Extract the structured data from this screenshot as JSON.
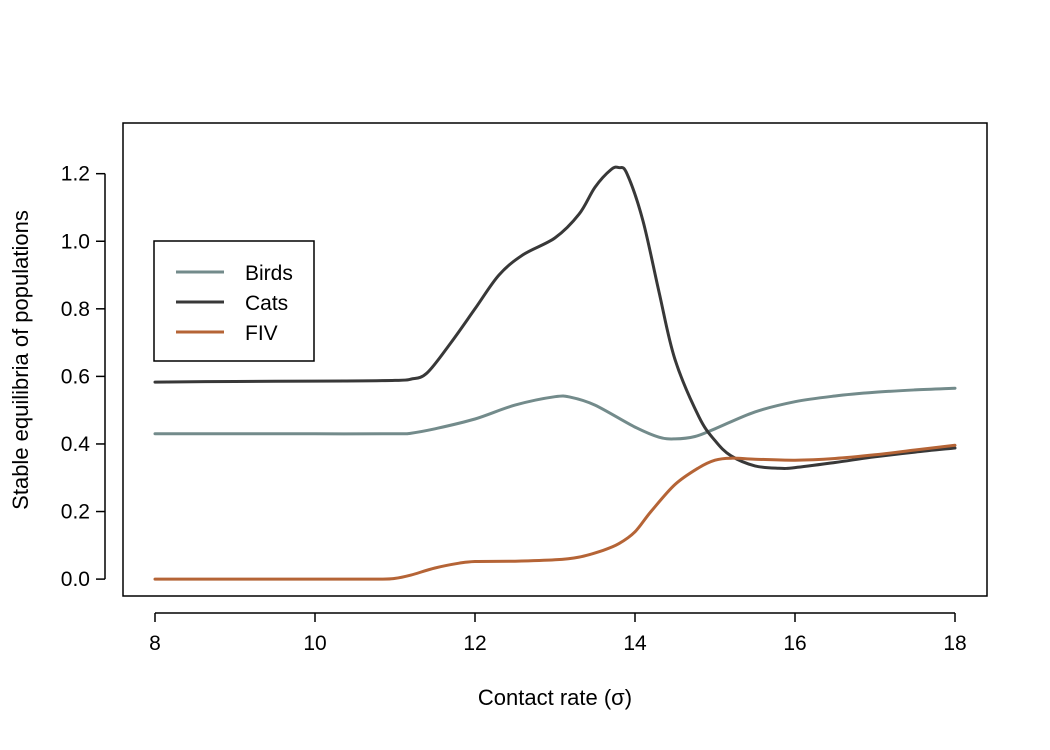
{
  "chart_data": {
    "type": "line",
    "xlabel": "Contact rate (σ)",
    "ylabel": "Stable equilibria of populations",
    "xlim": [
      7.6,
      18.4
    ],
    "ylim": [
      -0.05,
      1.35
    ],
    "xticks": [
      8,
      10,
      12,
      14,
      16,
      18
    ],
    "yticks": [
      0.0,
      0.2,
      0.4,
      0.6,
      0.8,
      1.0,
      1.2
    ],
    "ytick_labels": [
      "0.0",
      "0.2",
      "0.4",
      "0.6",
      "0.8",
      "1.0",
      "1.2"
    ],
    "grid": false,
    "legend_position": "top-left",
    "series": [
      {
        "name": "Birds",
        "color": "#738b8b",
        "x": [
          8,
          9,
          10,
          11,
          11.2,
          11.5,
          12,
          12.5,
          13,
          13.2,
          13.5,
          14,
          14.3,
          14.5,
          14.75,
          15,
          15.5,
          16,
          16.5,
          17,
          17.5,
          18
        ],
        "y": [
          0.43,
          0.43,
          0.43,
          0.43,
          0.432,
          0.445,
          0.474,
          0.515,
          0.54,
          0.538,
          0.515,
          0.45,
          0.42,
          0.415,
          0.422,
          0.445,
          0.495,
          0.525,
          0.542,
          0.553,
          0.56,
          0.565
        ]
      },
      {
        "name": "Cats",
        "color": "#383838",
        "x": [
          8,
          9,
          10,
          11,
          11.2,
          11.4,
          11.7,
          12,
          12.3,
          12.6,
          13,
          13.3,
          13.5,
          13.7,
          13.8,
          13.9,
          14.1,
          14.3,
          14.5,
          14.8,
          15,
          15.2,
          15.5,
          15.8,
          16,
          16.5,
          17,
          17.5,
          18
        ],
        "y": [
          0.583,
          0.585,
          0.586,
          0.588,
          0.592,
          0.61,
          0.7,
          0.8,
          0.9,
          0.96,
          1.01,
          1.08,
          1.16,
          1.212,
          1.218,
          1.2,
          1.06,
          0.85,
          0.65,
          0.48,
          0.41,
          0.365,
          0.335,
          0.328,
          0.33,
          0.345,
          0.362,
          0.376,
          0.388
        ]
      },
      {
        "name": "FIV",
        "color": "#b56436",
        "x": [
          8,
          9,
          10,
          10.8,
          11,
          11.2,
          11.5,
          11.8,
          12,
          12.5,
          13,
          13.3,
          13.6,
          13.8,
          14,
          14.2,
          14.5,
          14.8,
          15,
          15.2,
          15.5,
          16,
          16.5,
          17,
          17.5,
          18
        ],
        "y": [
          0,
          0,
          0,
          0,
          0.002,
          0.012,
          0.033,
          0.047,
          0.052,
          0.053,
          0.057,
          0.065,
          0.085,
          0.105,
          0.14,
          0.2,
          0.28,
          0.33,
          0.352,
          0.358,
          0.355,
          0.352,
          0.357,
          0.368,
          0.382,
          0.396
        ]
      }
    ]
  }
}
